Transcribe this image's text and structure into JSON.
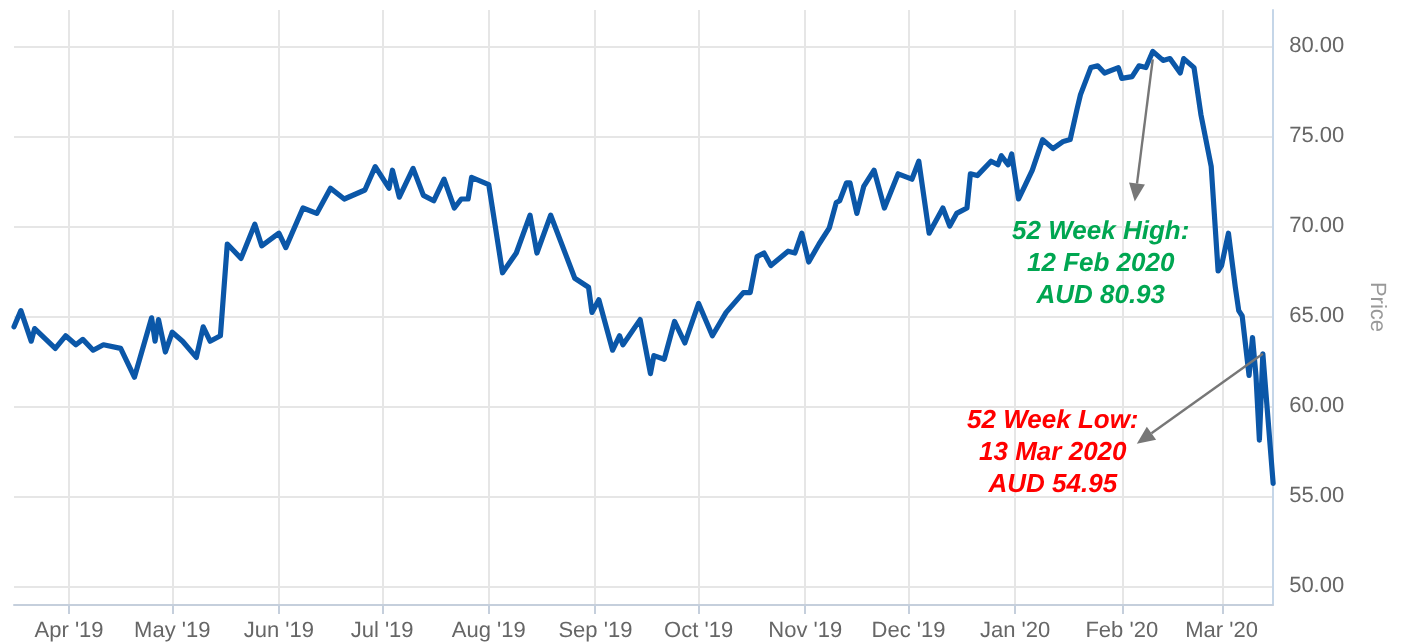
{
  "chart_data": {
    "type": "line",
    "ylabel": "Price",
    "x": [
      "2019-03-16",
      "2019-03-18",
      "2019-03-21",
      "2019-03-22",
      "2019-03-28",
      "2019-03-31",
      "2019-04-03",
      "2019-04-05",
      "2019-04-08",
      "2019-04-11",
      "2019-04-16",
      "2019-04-20",
      "2019-04-25",
      "2019-04-26",
      "2019-04-27",
      "2019-04-29",
      "2019-05-01",
      "2019-05-04",
      "2019-05-08",
      "2019-05-10",
      "2019-05-12",
      "2019-05-15",
      "2019-05-17",
      "2019-05-21",
      "2019-05-25",
      "2019-05-27",
      "2019-06-01",
      "2019-06-03",
      "2019-06-08",
      "2019-06-12",
      "2019-06-16",
      "2019-06-20",
      "2019-06-26",
      "2019-06-29",
      "2019-07-03",
      "2019-07-04",
      "2019-07-06",
      "2019-07-10",
      "2019-07-13",
      "2019-07-16",
      "2019-07-19",
      "2019-07-22",
      "2019-07-24",
      "2019-07-26",
      "2019-07-27",
      "2019-08-01",
      "2019-08-05",
      "2019-08-09",
      "2019-08-13",
      "2019-08-15",
      "2019-08-19",
      "2019-08-26",
      "2019-08-30",
      "2019-08-31",
      "2019-09-02",
      "2019-09-06",
      "2019-09-08",
      "2019-09-09",
      "2019-09-14",
      "2019-09-17",
      "2019-09-18",
      "2019-09-21",
      "2019-09-24",
      "2019-09-27",
      "2019-10-01",
      "2019-10-05",
      "2019-10-09",
      "2019-10-14",
      "2019-10-16",
      "2019-10-18",
      "2019-10-20",
      "2019-10-22",
      "2019-10-27",
      "2019-10-29",
      "2019-10-31",
      "2019-11-02",
      "2019-11-05",
      "2019-11-08",
      "2019-11-10",
      "2019-11-11",
      "2019-11-13",
      "2019-11-14",
      "2019-11-16",
      "2019-11-18",
      "2019-11-21",
      "2019-11-24",
      "2019-11-28",
      "2019-12-02",
      "2019-12-04",
      "2019-12-07",
      "2019-12-11",
      "2019-12-13",
      "2019-12-15",
      "2019-12-18",
      "2019-12-19",
      "2019-12-21",
      "2019-12-25",
      "2019-12-27",
      "2019-12-28",
      "2019-12-30",
      "2019-12-31",
      "2020-01-02",
      "2020-01-04",
      "2020-01-06",
      "2020-01-09",
      "2020-01-12",
      "2020-01-15",
      "2020-01-17",
      "2020-01-19",
      "2020-01-20",
      "2020-01-23",
      "2020-01-25",
      "2020-01-27",
      "2020-01-31",
      "2020-02-01",
      "2020-02-04",
      "2020-02-06",
      "2020-02-08",
      "2020-02-10",
      "2020-02-13",
      "2020-02-15",
      "2020-02-18",
      "2020-02-19",
      "2020-02-22",
      "2020-02-24",
      "2020-02-27",
      "2020-02-29",
      "2020-03-01",
      "2020-03-03",
      "2020-03-05",
      "2020-03-06",
      "2020-03-07",
      "2020-03-09",
      "2020-03-10",
      "2020-03-11",
      "2020-03-12",
      "2020-03-13",
      "2020-03-16"
    ],
    "series": [
      {
        "color": "#0b57a8",
        "values": [
          64.4,
          65.3,
          63.6,
          64.3,
          63.2,
          63.9,
          63.4,
          63.7,
          63.1,
          63.4,
          63.2,
          61.6,
          64.9,
          63.6,
          64.8,
          63.0,
          64.1,
          63.6,
          62.7,
          64.4,
          63.6,
          63.9,
          69.0,
          68.2,
          70.1,
          68.9,
          69.6,
          68.8,
          71.0,
          70.7,
          72.1,
          71.5,
          72.0,
          73.3,
          72.1,
          73.1,
          71.6,
          73.2,
          71.7,
          71.4,
          72.6,
          71.0,
          71.5,
          71.5,
          72.7,
          72.3,
          67.4,
          68.5,
          70.6,
          68.5,
          70.6,
          67.1,
          66.6,
          65.2,
          65.9,
          63.1,
          63.9,
          63.4,
          64.8,
          61.8,
          62.8,
          62.6,
          64.7,
          63.5,
          65.7,
          63.9,
          65.2,
          66.3,
          66.3,
          68.3,
          68.5,
          67.8,
          68.6,
          68.5,
          69.6,
          68.0,
          69.0,
          69.9,
          71.3,
          71.4,
          72.4,
          72.4,
          70.7,
          72.2,
          73.1,
          71.0,
          72.9,
          72.6,
          73.6,
          69.6,
          71.0,
          70.0,
          70.7,
          71.0,
          72.9,
          72.8,
          73.6,
          73.4,
          73.9,
          73.4,
          74.0,
          71.5,
          72.3,
          73.1,
          74.8,
          74.3,
          74.7,
          74.8,
          76.5,
          77.3,
          78.8,
          78.9,
          78.5,
          78.8,
          78.2,
          78.3,
          78.9,
          78.8,
          79.7,
          79.2,
          79.3,
          78.5,
          79.3,
          78.8,
          76.2,
          73.3,
          67.5,
          67.8,
          69.6,
          66.6,
          65.3,
          65.0,
          61.7,
          63.8,
          61.7,
          58.1,
          62.9,
          55.7
        ]
      }
    ],
    "xlim": [
      "2019-03-16",
      "2020-03-16"
    ],
    "xticks": [
      {
        "value": "2019-04-01",
        "label": "Apr '19"
      },
      {
        "value": "2019-05-01",
        "label": "May '19"
      },
      {
        "value": "2019-06-01",
        "label": "Jun '19"
      },
      {
        "value": "2019-07-01",
        "label": "Jul '19"
      },
      {
        "value": "2019-08-01",
        "label": "Aug '19"
      },
      {
        "value": "2019-09-01",
        "label": "Sep '19"
      },
      {
        "value": "2019-10-01",
        "label": "Oct '19"
      },
      {
        "value": "2019-11-01",
        "label": "Nov '19"
      },
      {
        "value": "2019-12-01",
        "label": "Dec '19"
      },
      {
        "value": "2020-01-01",
        "label": "Jan '20"
      },
      {
        "value": "2020-02-01",
        "label": "Feb '20"
      },
      {
        "value": "2020-03-01",
        "label": "Mar '20"
      }
    ],
    "ylim": [
      49,
      82
    ],
    "yticks": [
      {
        "value": 50,
        "label": "50.00"
      },
      {
        "value": 55,
        "label": "55.00"
      },
      {
        "value": 60,
        "label": "60.00"
      },
      {
        "value": 65,
        "label": "65.00"
      },
      {
        "value": 70,
        "label": "70.00"
      },
      {
        "value": 75,
        "label": "75.00"
      },
      {
        "value": 80,
        "label": "80.00"
      }
    ],
    "grid": true,
    "marker": "none",
    "line_style": "solid",
    "annotations": [
      {
        "text": "52 Week High:\n12 Feb 2020\nAUD 80.93",
        "x": "2020-02-10",
        "y": 79.7
      },
      {
        "text": "52 Week Low:\n13 Mar 2020\nAUD 54.95",
        "x": "2020-03-13",
        "y": 62.9
      }
    ]
  }
}
